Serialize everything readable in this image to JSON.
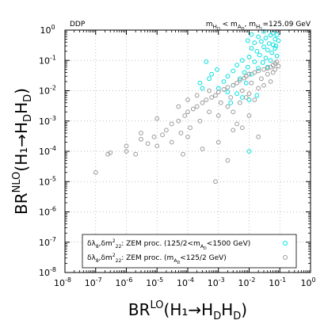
{
  "chart_data": {
    "type": "scatter",
    "x_scale": "log",
    "y_scale": "log",
    "xlim": [
      1e-08,
      1
    ],
    "ylim": [
      1e-08,
      1
    ],
    "x_ticks": [
      1e-08,
      1e-07,
      1e-06,
      1e-05,
      0.0001,
      0.001,
      0.01,
      0.1,
      1
    ],
    "y_ticks": [
      1e-08,
      1e-07,
      1e-06,
      1e-05,
      0.0001,
      0.001,
      0.01,
      0.1,
      1
    ],
    "grid": true,
    "legend_placement": "bottom-right",
    "xlabel": {
      "main": "BR",
      "sup": "LO",
      "rest": "(H₁→H",
      "sub1": "D",
      "mid": "H",
      "sub2": "D",
      "end": ")"
    },
    "ylabel": {
      "main": "BR",
      "sup": "NLO",
      "rest": "(H₁→H",
      "sub1": "D",
      "mid": "H",
      "sub2": "D",
      "end": ")"
    },
    "annotation_left": "DDP",
    "annotation_right": "m_{H_D} < m_{A_D},  m_{H_1}=125.09 GeV",
    "series": [
      {
        "name": "δλ8,δm²22: ZEM proc. (125/2<mAD<1500 GeV)",
        "legend_text": "δλ₈,δm²₂₂: ZEM proc. (125/2<m_AD<1500 GeV)",
        "color": "#00e0e0",
        "marker": "open-circle",
        "points": [
          [
            0.012,
            0.72
          ],
          [
            0.02,
            0.6
          ],
          [
            0.035,
            0.55
          ],
          [
            0.05,
            0.68
          ],
          [
            0.07,
            0.5
          ],
          [
            0.08,
            0.7
          ],
          [
            0.009,
            0.45
          ],
          [
            0.015,
            0.38
          ],
          [
            0.025,
            0.42
          ],
          [
            0.045,
            0.36
          ],
          [
            0.06,
            0.33
          ],
          [
            0.03,
            0.28
          ],
          [
            0.012,
            0.25
          ],
          [
            0.018,
            0.2
          ],
          [
            0.04,
            0.22
          ],
          [
            0.07,
            0.25
          ],
          [
            0.055,
            0.18
          ],
          [
            0.022,
            0.15
          ],
          [
            0.01,
            0.13
          ],
          [
            0.035,
            0.12
          ],
          [
            0.08,
            0.14
          ],
          [
            0.006,
            0.1
          ],
          [
            0.015,
            0.09
          ],
          [
            0.028,
            0.085
          ],
          [
            0.05,
            0.1
          ],
          [
            0.004,
            0.07
          ],
          [
            0.009,
            0.06
          ],
          [
            0.02,
            0.055
          ],
          [
            0.003,
            0.045
          ],
          [
            0.007,
            0.04
          ],
          [
            0.012,
            0.035
          ],
          [
            0.002,
            0.03
          ],
          [
            0.005,
            0.025
          ],
          [
            0.0015,
            0.02
          ],
          [
            0.008,
            0.018
          ],
          [
            0.003,
            0.015
          ],
          [
            0.001,
            0.012
          ],
          [
            0.002,
            0.009
          ],
          [
            0.0006,
            0.035
          ],
          [
            0.0009,
            0.05
          ],
          [
            0.0004,
            0.09
          ],
          [
            0.0005,
            0.025
          ],
          [
            0.00025,
            0.018
          ],
          [
            0.0003,
            0.012
          ],
          [
            0.004,
            0.008
          ],
          [
            0.006,
            0.006
          ],
          [
            0.01,
            0.005
          ],
          [
            0.0025,
            0.004
          ],
          [
            0.09,
            0.45
          ],
          [
            0.06,
            0.8
          ],
          [
            0.03,
            0.9
          ],
          [
            0.075,
            0.3
          ],
          [
            0.01,
            0.0001
          ],
          [
            0.018,
            0.007
          ],
          [
            0.04,
            0.06
          ]
        ]
      },
      {
        "name": "δλ8,δm²22: ZEM proc. (mAD<125/2 GeV)",
        "legend_text": "δλ₈,δm²₂₂: ZEM proc. (m_AD<125/2 GeV)",
        "color": "#9a9a9a",
        "marker": "open-circle",
        "points": [
          [
            1e-07,
            2e-05
          ],
          [
            2.5e-07,
            8e-05
          ],
          [
            3e-07,
            9e-05
          ],
          [
            1e-06,
            0.0001
          ],
          [
            2e-06,
            8e-05
          ],
          [
            1e-06,
            0.00015
          ],
          [
            3e-06,
            0.00025
          ],
          [
            5e-06,
            0.00018
          ],
          [
            8e-06,
            0.0003
          ],
          [
            1e-05,
            0.00015
          ],
          [
            1.5e-05,
            0.00035
          ],
          [
            2e-05,
            0.0005
          ],
          [
            3e-05,
            0.0002
          ],
          [
            3e-05,
            0.0008
          ],
          [
            5e-05,
            0.001
          ],
          [
            6e-05,
            0.0004
          ],
          [
            8e-05,
            0.0015
          ],
          [
            0.0001,
            0.002
          ],
          [
            0.00012,
            0.0006
          ],
          [
            0.00015,
            0.0025
          ],
          [
            0.0002,
            0.003
          ],
          [
            0.00025,
            0.001
          ],
          [
            0.0003,
            0.004
          ],
          [
            0.0004,
            0.005
          ],
          [
            0.0005,
            0.002
          ],
          [
            0.0006,
            0.006
          ],
          [
            0.0008,
            0.007
          ],
          [
            0.001,
            0.009
          ],
          [
            0.0012,
            0.004
          ],
          [
            0.0015,
            0.011
          ],
          [
            0.002,
            0.013
          ],
          [
            0.0025,
            0.006
          ],
          [
            0.003,
            0.015
          ],
          [
            0.004,
            0.018
          ],
          [
            0.005,
            0.022
          ],
          [
            0.006,
            0.01
          ],
          [
            0.007,
            0.026
          ],
          [
            0.008,
            0.03
          ],
          [
            0.01,
            0.035
          ],
          [
            0.012,
            0.018
          ],
          [
            0.015,
            0.04
          ],
          [
            0.02,
            0.045
          ],
          [
            0.025,
            0.025
          ],
          [
            0.03,
            0.05
          ],
          [
            0.04,
            0.055
          ],
          [
            0.05,
            0.06
          ],
          [
            0.06,
            0.07
          ],
          [
            0.07,
            0.08
          ],
          [
            0.08,
            0.09
          ],
          [
            0.09,
            0.065
          ],
          [
            0.001,
            0.0015
          ],
          [
            0.002,
            0.003
          ],
          [
            0.003,
            0.002
          ],
          [
            0.005,
            0.004
          ],
          [
            0.008,
            0.006
          ],
          [
            0.01,
            0.008
          ],
          [
            0.015,
            0.005
          ],
          [
            0.02,
            0.012
          ],
          [
            0.03,
            0.015
          ],
          [
            0.05,
            0.02
          ],
          [
            0.004,
            0.0008
          ],
          [
            0.006,
            0.0006
          ],
          [
            0.01,
            0.0015
          ],
          [
            0.02,
            0.0003
          ],
          [
            5e-05,
            0.003
          ],
          [
            1e-05,
            0.0012
          ],
          [
            3e-06,
            0.0004
          ],
          [
            0.0002,
            0.007
          ],
          [
            0.0005,
            0.01
          ],
          [
            0.0001,
            0.005
          ],
          [
            7e-05,
            8e-05
          ],
          [
            0.0003,
            0.00012
          ],
          [
            0.001,
            0.0002
          ],
          [
            0.003,
            0.0005
          ],
          [
            0.0001,
            0.0003
          ],
          [
            0.002,
            5e-05
          ],
          [
            0.0008,
            1e-05
          ],
          [
            0.04,
            0.035
          ],
          [
            0.06,
            0.04
          ],
          [
            0.07,
            0.05
          ]
        ]
      }
    ]
  }
}
